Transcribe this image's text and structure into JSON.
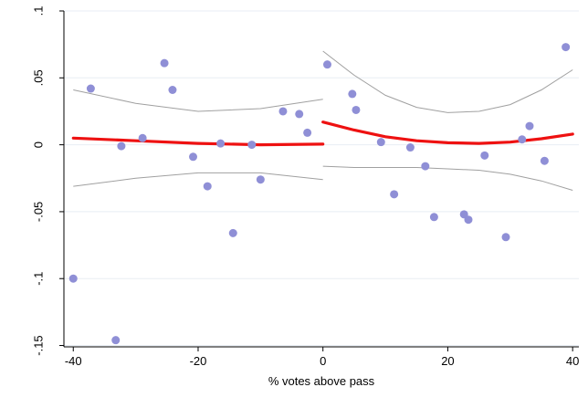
{
  "chart_data": {
    "type": "scatter",
    "title": "",
    "xlabel": "% votes above pass",
    "ylabel": "",
    "xlim": [
      -41.5,
      41
    ],
    "ylim": [
      -0.151,
      0.1
    ],
    "grid": "horizontal",
    "legend": "none",
    "x_ticks": [
      {
        "value": -40,
        "label": "-40"
      },
      {
        "value": -20,
        "label": "-20"
      },
      {
        "value": 0,
        "label": "0"
      },
      {
        "value": 20,
        "label": "20"
      },
      {
        "value": 40,
        "label": "40"
      }
    ],
    "y_ticks": [
      {
        "value": -0.15,
        "label": "-.15"
      },
      {
        "value": -0.1,
        "label": "-.1"
      },
      {
        "value": -0.05,
        "label": "-.05"
      },
      {
        "value": 0,
        "label": "0"
      },
      {
        "value": 0.05,
        "label": ".05"
      },
      {
        "value": 0.1,
        "label": ".1"
      }
    ],
    "colors": {
      "points": "#8f8fd6",
      "fit": "#ee1111",
      "ci": "#a0a0a0",
      "grid": "#e8eef4",
      "axis": "#000000"
    },
    "series": [
      {
        "kind": "points",
        "x": [
          -40,
          -37.2,
          -33.2,
          -32.3,
          -28.9,
          -25.4,
          -24.1,
          -20.8,
          -18.5,
          -16.4,
          -14.4,
          -11.4,
          -10,
          -6.4,
          -3.8,
          -2.5,
          0.7,
          4.7,
          5.3,
          9.3,
          11.4,
          14,
          16.4,
          17.8,
          22.6,
          23.3,
          25.9,
          29.3,
          31.9,
          33.1,
          35.5,
          38.9
        ],
        "y": [
          -0.1,
          0.042,
          -0.146,
          -0.001,
          0.005,
          0.061,
          0.041,
          -0.009,
          -0.031,
          0.001,
          -0.066,
          0,
          -0.026,
          0.025,
          0.023,
          0.009,
          0.06,
          0.038,
          0.026,
          0.002,
          -0.037,
          -0.002,
          -0.016,
          -0.054,
          -0.052,
          -0.056,
          -0.008,
          -0.069,
          0.004,
          0.014,
          -0.012,
          0.073
        ]
      },
      {
        "kind": "fit",
        "segments": [
          {
            "x": [
              -40,
              -30,
              -20,
              -10,
              0
            ],
            "y": [
              0.005,
              0.003,
              0.001,
              0,
              0.0005
            ]
          },
          {
            "x": [
              0,
              5,
              10,
              15,
              20,
              25,
              30,
              35,
              40
            ],
            "y": [
              0.017,
              0.011,
              0.006,
              0.003,
              0.0015,
              0.001,
              0.002,
              0.0045,
              0.008
            ]
          }
        ]
      },
      {
        "kind": "ci-upper",
        "segments": [
          {
            "x": [
              -40,
              -30,
              -20,
              -10,
              0
            ],
            "y": [
              0.041,
              0.031,
              0.025,
              0.027,
              0.034
            ]
          },
          {
            "x": [
              0,
              5,
              10,
              15,
              20,
              25,
              30,
              35,
              40
            ],
            "y": [
              0.07,
              0.052,
              0.037,
              0.028,
              0.024,
              0.025,
              0.03,
              0.041,
              0.056
            ]
          }
        ]
      },
      {
        "kind": "ci-lower",
        "segments": [
          {
            "x": [
              -40,
              -30,
              -20,
              -10,
              0
            ],
            "y": [
              -0.031,
              -0.025,
              -0.021,
              -0.021,
              -0.026
            ]
          },
          {
            "x": [
              0,
              5,
              10,
              15,
              20,
              25,
              30,
              35,
              40
            ],
            "y": [
              -0.016,
              -0.017,
              -0.017,
              -0.017,
              -0.018,
              -0.019,
              -0.022,
              -0.027,
              -0.034
            ]
          }
        ]
      }
    ]
  }
}
